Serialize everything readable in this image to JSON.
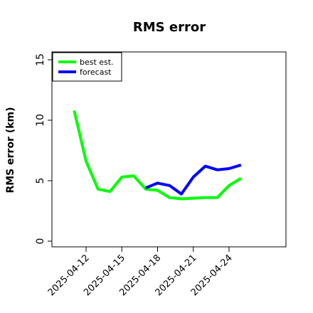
{
  "chart_data": {
    "type": "line",
    "title": "RMS error",
    "xlabel": "",
    "ylabel": "RMS error (km)",
    "x_ticks": [
      "2025-04-12",
      "2025-04-15",
      "2025-04-18",
      "2025-04-21",
      "2025-04-24"
    ],
    "ylim": [
      0,
      15
    ],
    "y_ticks": [
      0,
      5,
      10,
      15
    ],
    "grid": false,
    "legend_position": "top-left",
    "series": [
      {
        "name": "best est.",
        "color": "#00ff00",
        "points": [
          {
            "x": "2025-04-11",
            "y": 10.8
          },
          {
            "x": "2025-04-12",
            "y": 6.6
          },
          {
            "x": "2025-04-13",
            "y": 4.3
          },
          {
            "x": "2025-04-14",
            "y": 4.1
          },
          {
            "x": "2025-04-15",
            "y": 5.3
          },
          {
            "x": "2025-04-16",
            "y": 5.4
          },
          {
            "x": "2025-04-17",
            "y": 4.3
          },
          {
            "x": "2025-04-18",
            "y": 4.2
          },
          {
            "x": "2025-04-19",
            "y": 3.6
          },
          {
            "x": "2025-04-20",
            "y": 3.5
          },
          {
            "x": "2025-04-22",
            "y": 3.6
          },
          {
            "x": "2025-04-23",
            "y": 3.6
          },
          {
            "x": "2025-04-24",
            "y": 4.6
          },
          {
            "x": "2025-04-25",
            "y": 5.2
          }
        ]
      },
      {
        "name": "forecast",
        "color": "#0000ff",
        "points": [
          {
            "x": "2025-04-17",
            "y": 4.4
          },
          {
            "x": "2025-04-18",
            "y": 4.8
          },
          {
            "x": "2025-04-19",
            "y": 4.6
          },
          {
            "x": "2025-04-20",
            "y": 3.9
          },
          {
            "x": "2025-04-21",
            "y": 5.3
          },
          {
            "x": "2025-04-22",
            "y": 6.2
          },
          {
            "x": "2025-04-23",
            "y": 5.9
          },
          {
            "x": "2025-04-24",
            "y": 6.0
          },
          {
            "x": "2025-04-25",
            "y": 6.3
          }
        ]
      }
    ]
  }
}
